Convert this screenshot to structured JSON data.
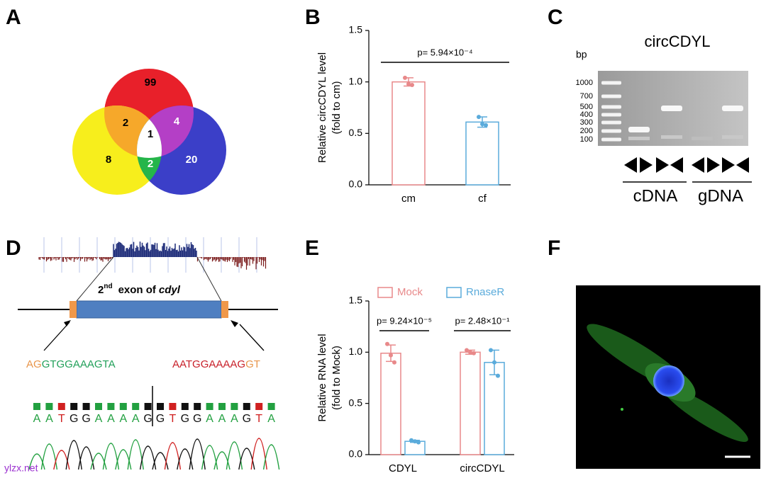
{
  "panels": [
    "A",
    "B",
    "C",
    "D",
    "E",
    "F"
  ],
  "venn": {
    "values": [
      99,
      2,
      4,
      1,
      8,
      2,
      20
    ]
  },
  "chart_data": [
    {
      "type": "bar",
      "ylabel": [
        "Relative circCDYL level",
        "(fold to cm)"
      ],
      "categories": [
        "cm",
        "cf"
      ],
      "values": [
        1.0,
        0.61
      ],
      "errors": [
        0.04,
        0.05
      ],
      "points": [
        [
          1.04,
          0.98,
          0.97
        ],
        [
          0.66,
          0.59,
          0.58
        ]
      ],
      "colors": [
        "#e8898a",
        "#5aabdb"
      ],
      "ylim": [
        0,
        1.5
      ],
      "yticks": [
        {
          "value": 0,
          "label": "0.0"
        },
        {
          "value": 0.5,
          "label": "0.5"
        },
        {
          "value": 1,
          "label": "1.0"
        },
        {
          "value": 1.5,
          "label": "1.5"
        }
      ],
      "annotations": [
        "p= 5.94×10⁻⁴"
      ]
    },
    {
      "type": "grouped_bar",
      "ylabel": [
        "Relative RNA level",
        "(fold to Mock)"
      ],
      "categories": [
        "CDYL",
        "circCDYL"
      ],
      "series": [
        {
          "name": "Mock",
          "color": "#e8898a",
          "values": [
            0.99,
            1.0
          ],
          "errors": [
            0.08,
            0.02
          ],
          "points": [
            [
              1.08,
              0.97,
              0.9
            ],
            [
              1.02,
              1.0,
              0.99
            ]
          ]
        },
        {
          "name": "RnaseR",
          "color": "#5aabdb",
          "values": [
            0.13,
            0.9
          ],
          "errors": [
            0.01,
            0.12
          ],
          "points": [
            [
              0.14,
              0.13,
              0.12
            ],
            [
              1.02,
              0.9,
              0.77
            ]
          ]
        }
      ],
      "ylim": [
        0,
        1.5
      ],
      "yticks": [
        {
          "value": 0,
          "label": "0.0"
        },
        {
          "value": 0.5,
          "label": "0.5"
        },
        {
          "value": 1,
          "label": "1.0"
        },
        {
          "value": 1.5,
          "label": "1.5"
        }
      ],
      "legend": "top",
      "annotations": [
        "p= 9.24×10⁻⁵",
        "p= 2.48×10⁻¹"
      ]
    }
  ],
  "gel": {
    "title": "circCDYL",
    "unit": "bp",
    "ladder": [
      1000,
      700,
      500,
      400,
      300,
      200,
      100
    ],
    "lanes": [
      "cDNA",
      "gDNA"
    ]
  },
  "exon_diagram": {
    "exon_number": "2",
    "exon_suffix": "nd",
    "exon_text": "exon of",
    "gene": "cdyl",
    "left_junction": [
      "AG",
      "GTGGAAAGTA"
    ],
    "right_junction": [
      "AATGGAAAAG",
      "GT"
    ],
    "bases": [
      "A",
      "A",
      "T",
      "G",
      "G",
      "A",
      "A",
      "A",
      "A",
      "G",
      "G",
      "T",
      "G",
      "G",
      "A",
      "A",
      "A",
      "G",
      "T",
      "A"
    ]
  },
  "watermark": "ylzx.net"
}
